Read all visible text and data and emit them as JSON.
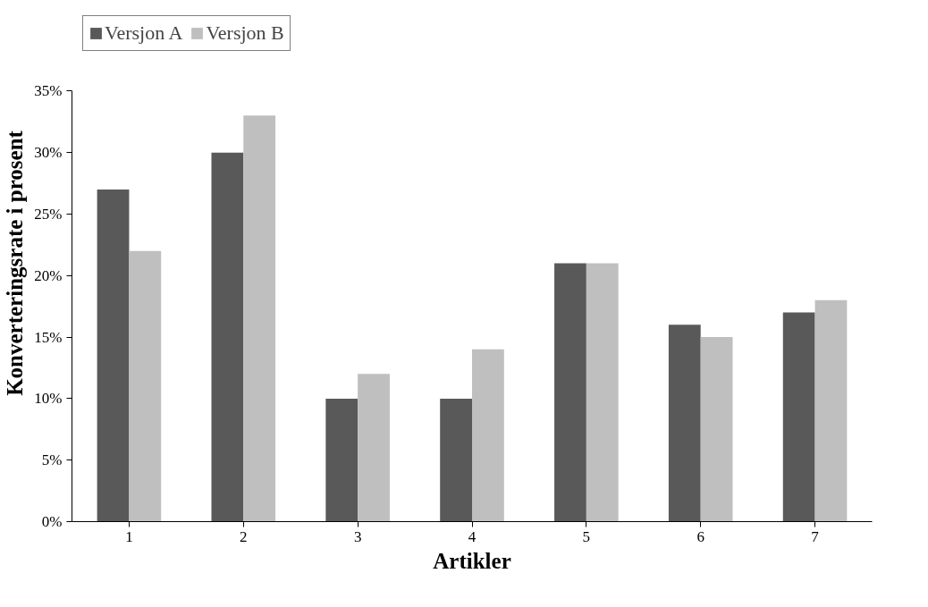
{
  "chart_data": {
    "type": "bar",
    "xlabel": "Artikler",
    "ylabel": "Konverteringsrate i prosent",
    "categories": [
      "1",
      "2",
      "3",
      "4",
      "5",
      "6",
      "7"
    ],
    "series": [
      {
        "name": "Versjon A",
        "color": "#595959",
        "values": [
          27,
          30,
          10,
          10,
          21,
          16,
          17
        ]
      },
      {
        "name": "Versjon B",
        "color": "#bfbfbf",
        "values": [
          22,
          33,
          12,
          14,
          21,
          15,
          18
        ]
      }
    ],
    "ylim": [
      0,
      35
    ],
    "yticks": [
      {
        "value": 0,
        "label": "0%"
      },
      {
        "value": 5,
        "label": "5%"
      },
      {
        "value": 10,
        "label": "10%"
      },
      {
        "value": 15,
        "label": "15%"
      },
      {
        "value": 20,
        "label": "20%"
      },
      {
        "value": 25,
        "label": "25%"
      },
      {
        "value": 30,
        "label": "30%"
      },
      {
        "value": 35,
        "label": "35%"
      }
    ],
    "grid": false,
    "legend": "top left"
  }
}
